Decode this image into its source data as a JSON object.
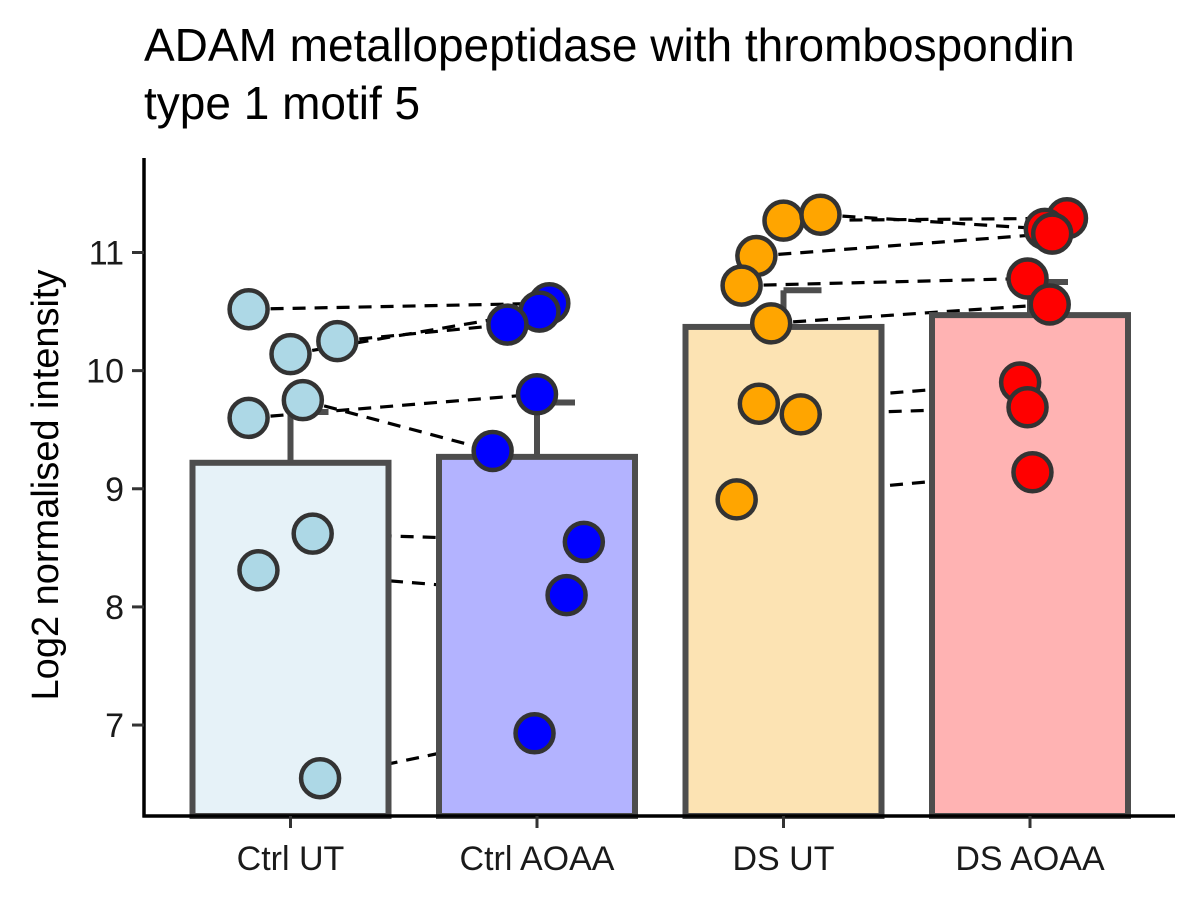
{
  "chart_data": {
    "type": "bar",
    "title": "ADAM metallopeptidase with thrombospondin type 1 motif 5",
    "title_lines": [
      "ADAM metallopeptidase with thrombospondin",
      "type 1 motif 5"
    ],
    "xlabel": "",
    "ylabel": "Log2 normalised intensity",
    "ylim": [
      6.23,
      11.8
    ],
    "yticks": [
      7,
      8,
      9,
      10,
      11
    ],
    "categories": [
      "Ctrl UT",
      "Ctrl AOAA",
      "DS UT",
      "DS AOAA"
    ],
    "values": [
      9.22,
      9.27,
      10.37,
      10.47
    ],
    "error_upper": [
      9.65,
      9.73,
      10.68,
      10.75
    ],
    "bar_colors": [
      "#e6f2f8",
      "#b3b3ff",
      "#fce3b3",
      "#ffb3b3"
    ],
    "point_colors": [
      "#add8e6",
      "#0000ff",
      "#ffa500",
      "#ff0000"
    ],
    "bar_edge_color": "#4d4d4d",
    "grid": false,
    "legend": "none",
    "points": [
      [
        10.52,
        10.14,
        10.25,
        9.6,
        9.75,
        8.62,
        8.31,
        6.55
      ],
      [
        10.57,
        10.5,
        10.39,
        9.8,
        9.32,
        8.55,
        8.1,
        6.93
      ],
      [
        11.27,
        11.32,
        10.97,
        10.72,
        10.4,
        9.72,
        9.63,
        8.91
      ],
      [
        11.29,
        11.2,
        11.16,
        10.78,
        10.56,
        9.9,
        9.69,
        9.14
      ]
    ],
    "point_jitter": [
      [
        -0.17,
        0.0,
        0.19,
        -0.17,
        0.05,
        0.09,
        -0.13,
        0.12
      ],
      [
        0.05,
        0.01,
        -0.12,
        0.0,
        -0.18,
        0.19,
        0.12,
        -0.01
      ],
      [
        0.0,
        0.15,
        -0.11,
        -0.17,
        -0.05,
        -0.1,
        0.07,
        -0.19
      ],
      [
        0.15,
        0.06,
        0.09,
        -0.01,
        0.08,
        -0.04,
        -0.01,
        0.01
      ]
    ],
    "pairings": [
      {
        "from": 0,
        "to": 1
      },
      {
        "from": 2,
        "to": 3
      }
    ]
  }
}
